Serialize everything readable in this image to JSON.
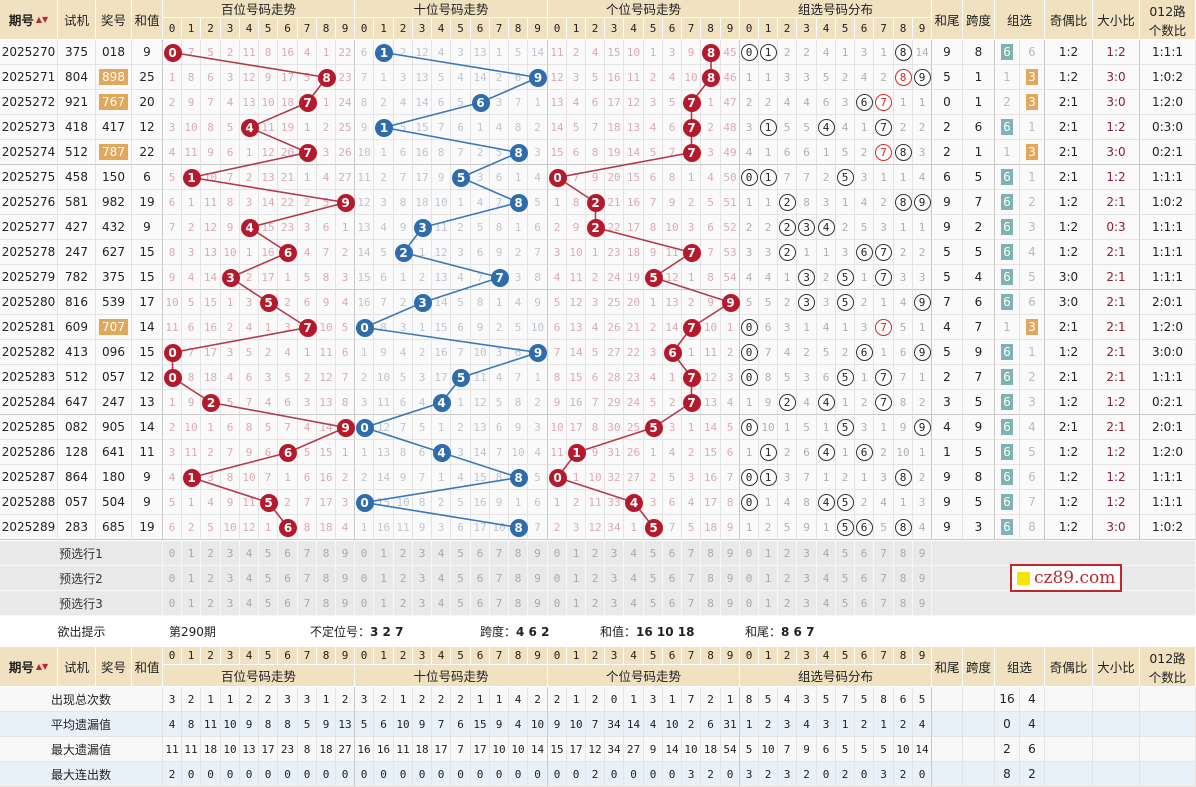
{
  "header": {
    "period": "期号",
    "sort": "▲▼",
    "test": "试机",
    "num": "奖号",
    "sum": "和值",
    "sections": [
      "百位号码走势",
      "十位号码走势",
      "个位号码走势",
      "组选号码分布"
    ],
    "tail": "和尾",
    "span": "跨度",
    "group": "组选",
    "oe": "奇偶比",
    "bs": "大小比",
    "r012a": "012路",
    "r012b": "个数比",
    "digits": [
      "0",
      "1",
      "2",
      "3",
      "4",
      "5",
      "6",
      "7",
      "8",
      "9"
    ]
  },
  "watermark": "cz89.com",
  "colors": {
    "bai_ball": "#b51a2c",
    "shi_ball": "#2f6cab",
    "ge_ball": "#b51a2c",
    "group6": "#7fb3b3",
    "group3": "#e0a85c",
    "header": "#f0e2c0"
  },
  "rows": [
    {
      "p": "2025270",
      "t": "375",
      "n": "018",
      "s": "9",
      "bai": [
        0,
        7,
        5,
        2,
        11,
        8,
        16,
        4,
        1,
        22
      ],
      "shi": [
        6,
        1,
        2,
        12,
        4,
        3,
        13,
        1,
        5,
        14
      ],
      "ge": [
        11,
        2,
        4,
        15,
        10,
        1,
        3,
        9,
        8,
        45
      ],
      "zu": [
        0,
        1,
        2,
        2,
        4,
        1,
        3,
        1,
        8,
        14
      ],
      "tail": "9",
      "span": "8",
      "gt": "6",
      "g": [
        "6",
        "6"
      ],
      "oe": "1:2",
      "bs": "1:2",
      "r": "1:1:1"
    },
    {
      "p": "2025271",
      "t": "804",
      "n": "898",
      "s": "25",
      "bai": [
        1,
        8,
        6,
        3,
        12,
        9,
        17,
        5,
        8,
        23
      ],
      "shi": [
        7,
        1,
        3,
        13,
        5,
        4,
        14,
        2,
        6,
        9
      ],
      "ge": [
        12,
        3,
        5,
        16,
        11,
        2,
        4,
        10,
        8,
        46
      ],
      "zu": [
        1,
        1,
        3,
        3,
        5,
        2,
        4,
        2,
        8,
        9
      ],
      "tail": "5",
      "span": "1",
      "gt": "3",
      "g": [
        "1",
        "3"
      ],
      "oe": "1:2",
      "bs": "3:0",
      "r": "1:0:2"
    },
    {
      "p": "2025272",
      "t": "921",
      "n": "767",
      "s": "20",
      "bai": [
        2,
        9,
        7,
        4,
        13,
        10,
        18,
        7,
        1,
        24
      ],
      "shi": [
        8,
        2,
        4,
        14,
        6,
        5,
        6,
        3,
        7,
        1
      ],
      "ge": [
        13,
        4,
        6,
        17,
        12,
        3,
        5,
        7,
        1,
        47
      ],
      "zu": [
        2,
        2,
        4,
        4,
        6,
        3,
        6,
        7,
        1,
        1
      ],
      "tail": "0",
      "span": "1",
      "gt": "3",
      "g": [
        "2",
        "3"
      ],
      "oe": "2:1",
      "bs": "3:0",
      "r": "1:2:0"
    },
    {
      "p": "2025273",
      "t": "418",
      "n": "417",
      "s": "12",
      "bai": [
        3,
        10,
        8,
        5,
        4,
        11,
        19,
        1,
        2,
        25
      ],
      "shi": [
        9,
        1,
        5,
        15,
        7,
        6,
        1,
        4,
        8,
        2
      ],
      "ge": [
        14,
        5,
        7,
        18,
        13,
        4,
        6,
        7,
        2,
        48
      ],
      "zu": [
        3,
        1,
        5,
        5,
        4,
        4,
        1,
        7,
        2,
        2
      ],
      "tail": "2",
      "span": "6",
      "gt": "6",
      "g": [
        "6",
        "1"
      ],
      "oe": "2:1",
      "bs": "1:2",
      "r": "0:3:0"
    },
    {
      "p": "2025274",
      "t": "512",
      "n": "787",
      "s": "22",
      "bai": [
        4,
        11,
        9,
        6,
        1,
        12,
        20,
        7,
        3,
        26
      ],
      "shi": [
        10,
        1,
        6,
        16,
        8,
        7,
        2,
        5,
        8,
        3
      ],
      "ge": [
        15,
        6,
        8,
        19,
        14,
        5,
        7,
        7,
        3,
        49
      ],
      "zu": [
        4,
        1,
        6,
        6,
        1,
        5,
        2,
        7,
        8,
        3
      ],
      "tail": "2",
      "span": "1",
      "gt": "3",
      "g": [
        "1",
        "3"
      ],
      "oe": "2:1",
      "bs": "3:0",
      "r": "0:2:1"
    },
    {
      "p": "2025275",
      "t": "458",
      "n": "150",
      "s": "6",
      "bai": [
        5,
        1,
        10,
        7,
        2,
        13,
        21,
        1,
        4,
        27
      ],
      "shi": [
        11,
        2,
        7,
        17,
        9,
        5,
        3,
        6,
        1,
        4
      ],
      "ge": [
        0,
        7,
        9,
        20,
        15,
        6,
        8,
        1,
        4,
        50
      ],
      "zu": [
        0,
        1,
        7,
        7,
        2,
        5,
        3,
        1,
        1,
        4
      ],
      "tail": "6",
      "span": "5",
      "gt": "6",
      "g": [
        "6",
        "1"
      ],
      "oe": "2:1",
      "bs": "1:2",
      "r": "1:1:1"
    },
    {
      "p": "2025276",
      "t": "581",
      "n": "982",
      "s": "19",
      "bai": [
        6,
        1,
        11,
        8,
        3,
        14,
        22,
        2,
        5,
        9
      ],
      "shi": [
        12,
        3,
        8,
        18,
        10,
        1,
        4,
        7,
        8,
        5
      ],
      "ge": [
        1,
        8,
        2,
        21,
        16,
        7,
        9,
        2,
        5,
        51
      ],
      "zu": [
        1,
        1,
        2,
        8,
        3,
        1,
        4,
        2,
        8,
        9
      ],
      "tail": "9",
      "span": "7",
      "gt": "6",
      "g": [
        "6",
        "2"
      ],
      "oe": "1:2",
      "bs": "2:1",
      "r": "1:0:2"
    },
    {
      "p": "2025277",
      "t": "427",
      "n": "432",
      "s": "9",
      "bai": [
        7,
        2,
        12,
        9,
        4,
        15,
        23,
        3,
        6,
        1
      ],
      "shi": [
        13,
        4,
        9,
        3,
        11,
        2,
        5,
        8,
        1,
        6
      ],
      "ge": [
        2,
        9,
        2,
        22,
        17,
        8,
        10,
        3,
        6,
        52
      ],
      "zu": [
        2,
        2,
        2,
        3,
        4,
        2,
        5,
        3,
        1,
        1
      ],
      "tail": "9",
      "span": "2",
      "gt": "6",
      "g": [
        "6",
        "3"
      ],
      "oe": "1:2",
      "bs": "0:3",
      "r": "1:1:1"
    },
    {
      "p": "2025278",
      "t": "247",
      "n": "627",
      "s": "15",
      "bai": [
        8,
        3,
        13,
        10,
        1,
        16,
        6,
        4,
        7,
        2
      ],
      "shi": [
        14,
        5,
        2,
        1,
        12,
        3,
        6,
        9,
        2,
        7
      ],
      "ge": [
        3,
        10,
        1,
        23,
        18,
        9,
        11,
        7,
        7,
        53
      ],
      "zu": [
        3,
        3,
        2,
        1,
        1,
        3,
        6,
        7,
        2,
        2
      ],
      "tail": "5",
      "span": "5",
      "gt": "6",
      "g": [
        "6",
        "4"
      ],
      "oe": "1:2",
      "bs": "2:1",
      "r": "1:1:1"
    },
    {
      "p": "2025279",
      "t": "782",
      "n": "375",
      "s": "15",
      "bai": [
        9,
        4,
        14,
        3,
        2,
        17,
        1,
        5,
        8,
        3
      ],
      "shi": [
        15,
        6,
        1,
        2,
        13,
        4,
        7,
        7,
        3,
        8
      ],
      "ge": [
        4,
        11,
        2,
        24,
        19,
        5,
        12,
        1,
        8,
        54
      ],
      "zu": [
        4,
        4,
        1,
        3,
        2,
        5,
        1,
        7,
        3,
        3
      ],
      "tail": "5",
      "span": "4",
      "gt": "6",
      "g": [
        "6",
        "5"
      ],
      "oe": "3:0",
      "bs": "2:1",
      "r": "1:1:1"
    },
    {
      "p": "2025280",
      "t": "816",
      "n": "539",
      "s": "17",
      "bai": [
        10,
        5,
        15,
        1,
        3,
        5,
        2,
        6,
        9,
        4
      ],
      "shi": [
        16,
        7,
        2,
        3,
        14,
        5,
        8,
        1,
        4,
        9
      ],
      "ge": [
        5,
        12,
        3,
        25,
        20,
        1,
        13,
        2,
        9,
        9
      ],
      "zu": [
        5,
        5,
        2,
        3,
        3,
        5,
        2,
        1,
        4,
        9
      ],
      "tail": "7",
      "span": "6",
      "gt": "6",
      "g": [
        "6",
        "6"
      ],
      "oe": "3:0",
      "bs": "2:1",
      "r": "2:0:1"
    },
    {
      "p": "2025281",
      "t": "609",
      "n": "707",
      "s": "14",
      "bai": [
        11,
        6,
        16,
        2,
        4,
        1,
        3,
        7,
        10,
        5
      ],
      "shi": [
        0,
        8,
        3,
        1,
        15,
        6,
        9,
        2,
        5,
        10
      ],
      "ge": [
        6,
        13,
        4,
        26,
        21,
        2,
        14,
        7,
        10,
        1
      ],
      "zu": [
        0,
        6,
        3,
        1,
        4,
        1,
        3,
        7,
        5,
        1
      ],
      "tail": "4",
      "span": "7",
      "gt": "3",
      "g": [
        "1",
        "3"
      ],
      "oe": "2:1",
      "bs": "2:1",
      "r": "1:2:0"
    },
    {
      "p": "2025282",
      "t": "413",
      "n": "096",
      "s": "15",
      "bai": [
        0,
        7,
        17,
        3,
        5,
        2,
        4,
        1,
        11,
        6
      ],
      "shi": [
        1,
        9,
        4,
        2,
        16,
        7,
        10,
        3,
        6,
        9
      ],
      "ge": [
        7,
        14,
        5,
        27,
        22,
        3,
        6,
        1,
        11,
        2
      ],
      "zu": [
        0,
        7,
        4,
        2,
        5,
        2,
        6,
        1,
        6,
        9
      ],
      "tail": "5",
      "span": "9",
      "gt": "6",
      "g": [
        "6",
        "1"
      ],
      "oe": "1:2",
      "bs": "2:1",
      "r": "3:0:0"
    },
    {
      "p": "2025283",
      "t": "512",
      "n": "057",
      "s": "12",
      "bai": [
        0,
        8,
        18,
        4,
        6,
        3,
        5,
        2,
        12,
        7
      ],
      "shi": [
        2,
        10,
        5,
        3,
        17,
        5,
        11,
        4,
        7,
        1
      ],
      "ge": [
        8,
        15,
        6,
        28,
        23,
        4,
        1,
        7,
        12,
        3
      ],
      "zu": [
        0,
        8,
        5,
        3,
        6,
        5,
        1,
        7,
        7,
        1
      ],
      "tail": "2",
      "span": "7",
      "gt": "6",
      "g": [
        "6",
        "2"
      ],
      "oe": "2:1",
      "bs": "2:1",
      "r": "1:1:1"
    },
    {
      "p": "2025284",
      "t": "647",
      "n": "247",
      "s": "13",
      "bai": [
        1,
        9,
        2,
        5,
        7,
        4,
        6,
        3,
        13,
        8
      ],
      "shi": [
        3,
        11,
        6,
        4,
        4,
        1,
        12,
        5,
        8,
        2
      ],
      "ge": [
        9,
        16,
        7,
        29,
        24,
        5,
        2,
        7,
        13,
        4
      ],
      "zu": [
        1,
        9,
        2,
        4,
        4,
        1,
        2,
        7,
        8,
        2
      ],
      "tail": "3",
      "span": "5",
      "gt": "6",
      "g": [
        "6",
        "3"
      ],
      "oe": "1:2",
      "bs": "1:2",
      "r": "0:2:1"
    },
    {
      "p": "2025285",
      "t": "082",
      "n": "905",
      "s": "14",
      "bai": [
        2,
        10,
        1,
        6,
        8,
        5,
        7,
        4,
        14,
        9
      ],
      "shi": [
        0,
        12,
        7,
        5,
        1,
        2,
        13,
        6,
        9,
        3
      ],
      "ge": [
        10,
        17,
        8,
        30,
        25,
        5,
        3,
        1,
        14,
        5
      ],
      "zu": [
        0,
        10,
        1,
        5,
        1,
        5,
        3,
        1,
        9,
        9
      ],
      "tail": "4",
      "span": "9",
      "gt": "6",
      "g": [
        "6",
        "4"
      ],
      "oe": "2:1",
      "bs": "2:1",
      "r": "2:0:1"
    },
    {
      "p": "2025286",
      "t": "128",
      "n": "641",
      "s": "11",
      "bai": [
        3,
        11,
        2,
        7,
        9,
        6,
        6,
        5,
        15,
        1
      ],
      "shi": [
        1,
        13,
        8,
        6,
        4,
        3,
        14,
        7,
        10,
        4
      ],
      "ge": [
        11,
        1,
        9,
        31,
        26,
        1,
        4,
        2,
        15,
        6
      ],
      "zu": [
        1,
        1,
        2,
        6,
        4,
        1,
        6,
        2,
        10,
        1
      ],
      "tail": "1",
      "span": "5",
      "gt": "6",
      "g": [
        "6",
        "5"
      ],
      "oe": "1:2",
      "bs": "1:2",
      "r": "1:2:0"
    },
    {
      "p": "2025287",
      "t": "864",
      "n": "180",
      "s": "9",
      "bai": [
        4,
        1,
        3,
        8,
        10,
        7,
        1,
        6,
        16,
        2
      ],
      "shi": [
        2,
        14,
        9,
        7,
        1,
        4,
        15,
        8,
        8,
        5
      ],
      "ge": [
        0,
        1,
        10,
        32,
        27,
        2,
        5,
        3,
        16,
        7
      ],
      "zu": [
        0,
        1,
        3,
        7,
        1,
        2,
        1,
        3,
        8,
        2
      ],
      "tail": "9",
      "span": "8",
      "gt": "6",
      "g": [
        "6",
        "6"
      ],
      "oe": "1:2",
      "bs": "1:2",
      "r": "1:1:1"
    },
    {
      "p": "2025288",
      "t": "057",
      "n": "504",
      "s": "9",
      "bai": [
        5,
        1,
        4,
        9,
        11,
        5,
        2,
        7,
        17,
        3
      ],
      "shi": [
        0,
        15,
        10,
        8,
        2,
        5,
        16,
        9,
        1,
        6
      ],
      "ge": [
        1,
        2,
        11,
        33,
        4,
        3,
        6,
        4,
        17,
        8
      ],
      "zu": [
        0,
        1,
        4,
        8,
        4,
        5,
        2,
        4,
        1,
        3
      ],
      "tail": "9",
      "span": "5",
      "gt": "6",
      "g": [
        "6",
        "7"
      ],
      "oe": "1:2",
      "bs": "1:2",
      "r": "1:1:1"
    },
    {
      "p": "2025289",
      "t": "283",
      "n": "685",
      "s": "19",
      "bai": [
        6,
        2,
        5,
        10,
        12,
        1,
        6,
        8,
        18,
        4
      ],
      "shi": [
        1,
        16,
        11,
        9,
        3,
        6,
        17,
        10,
        8,
        7
      ],
      "ge": [
        2,
        3,
        12,
        34,
        1,
        5,
        7,
        5,
        18,
        9
      ],
      "zu": [
        1,
        2,
        5,
        9,
        1,
        5,
        6,
        5,
        8,
        4
      ],
      "tail": "9",
      "span": "3",
      "gt": "6",
      "g": [
        "6",
        "8"
      ],
      "oe": "1:2",
      "bs": "3:0",
      "r": "1:0:2"
    }
  ],
  "preselect": [
    "预选行1",
    "预选行2",
    "预选行3"
  ],
  "hint": {
    "label": "欲出提示",
    "period": "第290期",
    "items": [
      {
        "k": "不定位号：",
        "v": "3 2 7"
      },
      {
        "k": "跨度：",
        "v": "4 6 2"
      },
      {
        "k": "和值：",
        "v": "16 10 18"
      },
      {
        "k": "和尾：",
        "v": "8 6 7"
      }
    ]
  },
  "stats": [
    {
      "label": "出现总次数",
      "bai": [
        3,
        2,
        1,
        1,
        2,
        2,
        3,
        3,
        1,
        2
      ],
      "shi": [
        3,
        2,
        1,
        2,
        2,
        2,
        1,
        1,
        4,
        2
      ],
      "ge": [
        2,
        1,
        2,
        0,
        1,
        3,
        1,
        7,
        2,
        1
      ],
      "zu": [
        8,
        5,
        4,
        3,
        5,
        7,
        5,
        8,
        6,
        5
      ],
      "g": [
        "16",
        "4"
      ]
    },
    {
      "label": "平均遗漏值",
      "bai": [
        4,
        8,
        11,
        10,
        9,
        8,
        8,
        5,
        9,
        13
      ],
      "shi": [
        5,
        6,
        10,
        9,
        7,
        6,
        15,
        9,
        4,
        10
      ],
      "ge": [
        9,
        10,
        7,
        34,
        14,
        4,
        10,
        2,
        6,
        31
      ],
      "zu": [
        1,
        2,
        3,
        4,
        3,
        1,
        2,
        1,
        2,
        4
      ],
      "g": [
        "0",
        "4"
      ]
    },
    {
      "label": "最大遗漏值",
      "bai": [
        11,
        11,
        18,
        10,
        13,
        17,
        23,
        8,
        18,
        27
      ],
      "shi": [
        16,
        16,
        11,
        18,
        17,
        7,
        17,
        10,
        10,
        14
      ],
      "ge": [
        15,
        17,
        12,
        34,
        27,
        9,
        14,
        10,
        18,
        54
      ],
      "zu": [
        5,
        10,
        7,
        9,
        6,
        5,
        5,
        5,
        10,
        14
      ],
      "g": [
        "2",
        "6"
      ]
    },
    {
      "label": "最大连出数",
      "bai": [
        2,
        0,
        0,
        0,
        0,
        0,
        0,
        0,
        0,
        0
      ],
      "shi": [
        0,
        0,
        0,
        0,
        0,
        0,
        0,
        0,
        0,
        0
      ],
      "ge": [
        0,
        0,
        2,
        0,
        0,
        0,
        0,
        3,
        2,
        0
      ],
      "zu": [
        3,
        2,
        3,
        2,
        0,
        2,
        0,
        3,
        2,
        0
      ],
      "g": [
        "8",
        "2"
      ]
    }
  ]
}
